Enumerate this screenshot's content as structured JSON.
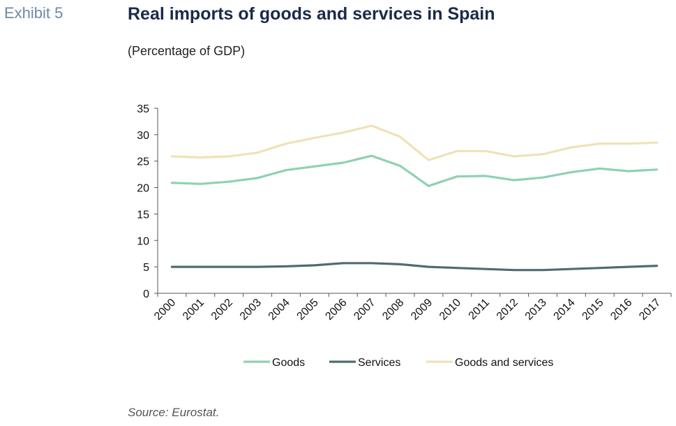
{
  "exhibit_label": "Exhibit 5",
  "title": "Real imports of goods and services in Spain",
  "subtitle": "(Percentage of GDP)",
  "source": "Source: Eurostat.",
  "chart_data": {
    "type": "line",
    "x": [
      "2000",
      "2001",
      "2002",
      "2003",
      "2004",
      "2005",
      "2006",
      "2007",
      "2008",
      "2009",
      "2010",
      "2011",
      "2012",
      "2013",
      "2014",
      "2015",
      "2016",
      "2017"
    ],
    "ylim": [
      0,
      35
    ],
    "yticks": [
      0,
      5,
      10,
      15,
      20,
      25,
      30,
      35
    ],
    "grid": false,
    "legend": "bottom",
    "series": [
      {
        "name": "Goods",
        "color": "#8fd1b1",
        "values": [
          20.9,
          20.7,
          21.1,
          21.8,
          23.3,
          24.0,
          24.7,
          26.0,
          24.1,
          20.3,
          22.1,
          22.2,
          21.4,
          21.9,
          22.9,
          23.6,
          23.1,
          23.4
        ]
      },
      {
        "name": "Services",
        "color": "#4f6b72",
        "values": [
          5.0,
          5.0,
          5.0,
          5.0,
          5.1,
          5.3,
          5.7,
          5.7,
          5.5,
          5.0,
          4.8,
          4.6,
          4.4,
          4.4,
          4.6,
          4.8,
          5.0,
          5.2
        ]
      },
      {
        "name": "Goods and services",
        "color": "#f0e2b6",
        "values": [
          25.9,
          25.7,
          25.9,
          26.6,
          28.3,
          29.4,
          30.4,
          31.7,
          29.6,
          25.2,
          26.9,
          26.9,
          25.9,
          26.3,
          27.6,
          28.3,
          28.3,
          28.5
        ]
      }
    ]
  }
}
